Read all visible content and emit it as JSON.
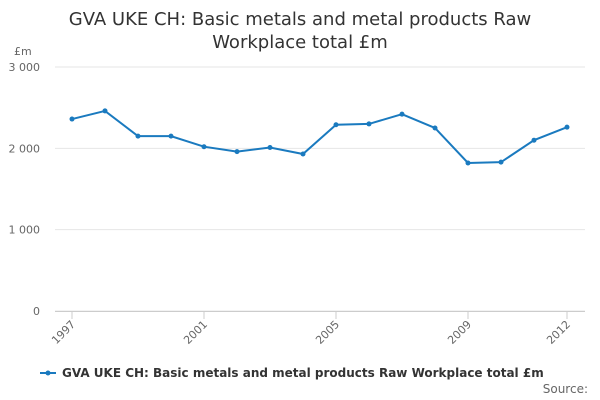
{
  "chart_data": {
    "type": "line",
    "title": "GVA UKE CH: Basic metals and metal products Raw Workplace total £m",
    "y_label": "£m",
    "source": "Source:",
    "x": [
      1997,
      1998,
      1999,
      2000,
      2001,
      2002,
      2003,
      2004,
      2005,
      2006,
      2007,
      2008,
      2009,
      2010,
      2011,
      2012
    ],
    "series": [
      {
        "name": "GVA UKE CH: Basic metals and metal products Raw Workplace total £m",
        "color": "#1a7abf",
        "values": [
          2360,
          2460,
          2150,
          2150,
          2020,
          1960,
          2010,
          1930,
          2290,
          2300,
          2420,
          2250,
          1820,
          1830,
          2100,
          2260
        ]
      }
    ],
    "xlim": [
      1997,
      2012
    ],
    "xticks": [
      1997,
      2001,
      2005,
      2009,
      2012
    ],
    "ylim": [
      0,
      3000
    ],
    "yticks": [
      0,
      {
        "value": 1000,
        "label": "1 000"
      },
      {
        "value": 2000,
        "label": "2 000"
      },
      {
        "value": 3000,
        "label": "3 000"
      }
    ],
    "grid": true
  }
}
